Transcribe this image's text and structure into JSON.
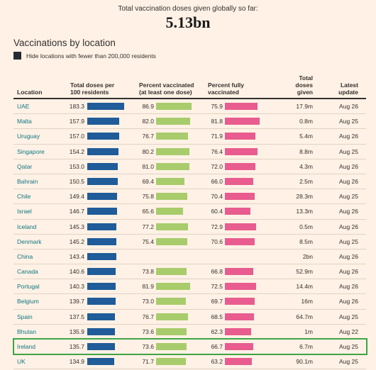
{
  "header": {
    "label": "Total vaccination doses given globally so far:",
    "total": "5.13bn"
  },
  "section": {
    "title": "Vaccinations by location",
    "filter_label": "Hide locations with fewer than 200,000 residents"
  },
  "table": {
    "columns": {
      "location": "Location",
      "doses_per_100_line1": "Total doses per",
      "doses_per_100_line2": "100 residents",
      "pct_one_line1": "Percent vaccinated",
      "pct_one_line2": "(at least one dose)",
      "pct_full_line1": "Percent fully",
      "pct_full_line2": "vaccinated",
      "total_line1": "Total",
      "total_line2": "doses",
      "total_line3": "given",
      "update_line1": "Latest",
      "update_line2": "update"
    },
    "rows": [
      {
        "location": "UAE",
        "doses": "183.3",
        "pct_one": "86.9",
        "pct_full": "75.9",
        "total": "17.9m",
        "update": "Aug 26",
        "doses_v": 183.3,
        "pct_one_v": 86.9,
        "pct_full_v": 75.9
      },
      {
        "location": "Malta",
        "doses": "157.9",
        "pct_one": "82.0",
        "pct_full": "81.8",
        "total": "0.8m",
        "update": "Aug 25",
        "doses_v": 157.9,
        "pct_one_v": 82.0,
        "pct_full_v": 81.8
      },
      {
        "location": "Uruguay",
        "doses": "157.0",
        "pct_one": "76.7",
        "pct_full": "71.9",
        "total": "5.4m",
        "update": "Aug 26",
        "doses_v": 157.0,
        "pct_one_v": 76.7,
        "pct_full_v": 71.9
      },
      {
        "location": "Singapore",
        "doses": "154.2",
        "pct_one": "80.2",
        "pct_full": "76.4",
        "total": "8.8m",
        "update": "Aug 25",
        "doses_v": 154.2,
        "pct_one_v": 80.2,
        "pct_full_v": 76.4
      },
      {
        "location": "Qatar",
        "doses": "153.0",
        "pct_one": "81.0",
        "pct_full": "72.0",
        "total": "4.3m",
        "update": "Aug 26",
        "doses_v": 153.0,
        "pct_one_v": 81.0,
        "pct_full_v": 72.0
      },
      {
        "location": "Bahrain",
        "doses": "150.5",
        "pct_one": "69.4",
        "pct_full": "66.0",
        "total": "2.5m",
        "update": "Aug 26",
        "doses_v": 150.5,
        "pct_one_v": 69.4,
        "pct_full_v": 66.0
      },
      {
        "location": "Chile",
        "doses": "149.4",
        "pct_one": "75.8",
        "pct_full": "70.4",
        "total": "28.3m",
        "update": "Aug 25",
        "doses_v": 149.4,
        "pct_one_v": 75.8,
        "pct_full_v": 70.4
      },
      {
        "location": "Israel",
        "doses": "146.7",
        "pct_one": "65.6",
        "pct_full": "60.4",
        "total": "13.3m",
        "update": "Aug 26",
        "doses_v": 146.7,
        "pct_one_v": 65.6,
        "pct_full_v": 60.4
      },
      {
        "location": "Iceland",
        "doses": "145.3",
        "pct_one": "77.2",
        "pct_full": "72.9",
        "total": "0.5m",
        "update": "Aug 26",
        "doses_v": 145.3,
        "pct_one_v": 77.2,
        "pct_full_v": 72.9
      },
      {
        "location": "Denmark",
        "doses": "145.2",
        "pct_one": "75.4",
        "pct_full": "70.6",
        "total": "8.5m",
        "update": "Aug 25",
        "doses_v": 145.2,
        "pct_one_v": 75.4,
        "pct_full_v": 70.6
      },
      {
        "location": "China",
        "doses": "143.4",
        "pct_one": "",
        "pct_full": "",
        "total": "2bn",
        "update": "Aug 26",
        "doses_v": 143.4,
        "pct_one_v": null,
        "pct_full_v": null
      },
      {
        "location": "Canada",
        "doses": "140.6",
        "pct_one": "73.8",
        "pct_full": "66.8",
        "total": "52.9m",
        "update": "Aug 26",
        "doses_v": 140.6,
        "pct_one_v": 73.8,
        "pct_full_v": 66.8
      },
      {
        "location": "Portugal",
        "doses": "140.3",
        "pct_one": "81.9",
        "pct_full": "72.5",
        "total": "14.4m",
        "update": "Aug 26",
        "doses_v": 140.3,
        "pct_one_v": 81.9,
        "pct_full_v": 72.5
      },
      {
        "location": "Belgium",
        "doses": "139.7",
        "pct_one": "73.0",
        "pct_full": "69.7",
        "total": "16m",
        "update": "Aug 26",
        "doses_v": 139.7,
        "pct_one_v": 73.0,
        "pct_full_v": 69.7
      },
      {
        "location": "Spain",
        "doses": "137.5",
        "pct_one": "76.7",
        "pct_full": "68.5",
        "total": "64.7m",
        "update": "Aug 25",
        "doses_v": 137.5,
        "pct_one_v": 76.7,
        "pct_full_v": 68.5
      },
      {
        "location": "Bhutan",
        "doses": "135.9",
        "pct_one": "73.6",
        "pct_full": "62.3",
        "total": "1m",
        "update": "Aug 22",
        "doses_v": 135.9,
        "pct_one_v": 73.6,
        "pct_full_v": 62.3
      },
      {
        "location": "Ireland",
        "doses": "135.7",
        "pct_one": "73.6",
        "pct_full": "66.7",
        "total": "6.7m",
        "update": "Aug 25",
        "doses_v": 135.7,
        "pct_one_v": 73.6,
        "pct_full_v": 66.7,
        "highlighted": true
      },
      {
        "location": "UK",
        "doses": "134.9",
        "pct_one": "71.7",
        "pct_full": "63.2",
        "total": "90.1m",
        "update": "Aug 25",
        "doses_v": 134.9,
        "pct_one_v": 71.7,
        "pct_full_v": 63.2
      }
    ]
  },
  "colors": {
    "background": "#fff1e5",
    "doses_bar": "#1f5c99",
    "pct_one_bar": "#a8cc6b",
    "pct_full_bar": "#e85c8f",
    "location_link": "#0d7680",
    "highlight_border": "#3da545"
  }
}
